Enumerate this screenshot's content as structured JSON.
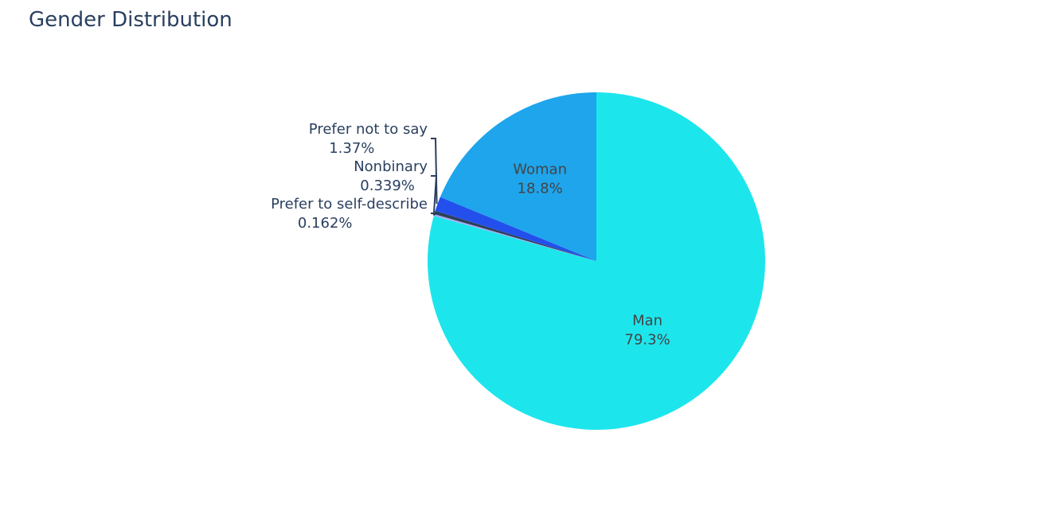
{
  "chart_data": {
    "type": "pie",
    "title": "Gender Distribution",
    "slices": [
      {
        "label": "Man",
        "value": 79.3,
        "percent_text": "79.3%",
        "color": "#1de5ec"
      },
      {
        "label": "Prefer to self-describe",
        "value": 0.162,
        "percent_text": "0.162%",
        "color": "#a9a9f5"
      },
      {
        "label": "Nonbinary",
        "value": 0.339,
        "percent_text": "0.339%",
        "color": "#2d4059"
      },
      {
        "label": "Prefer not to say",
        "value": 1.37,
        "percent_text": "1.37%",
        "color": "#2350ec"
      },
      {
        "label": "Woman",
        "value": 18.8,
        "percent_text": "18.8%",
        "color": "#1ea5ec"
      }
    ],
    "direction": "clockwise",
    "start_angle": "top",
    "inside_text_color": "#444444",
    "outside_text_color": "#2a3f5f",
    "connector_color": "#2a3f5f"
  }
}
